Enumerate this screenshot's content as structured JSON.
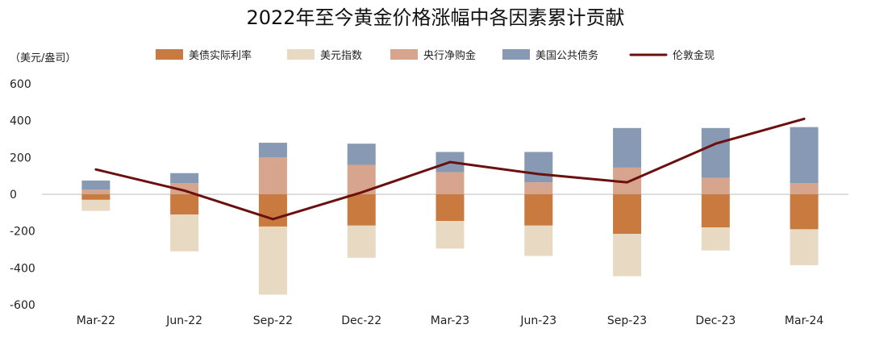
{
  "chart_data": {
    "type": "bar",
    "title": "2022年至今黄金价格涨幅中各因素累计贡献",
    "unit_label": "（美元/盎司）",
    "categories": [
      "Mar-22",
      "Jun-22",
      "Sep-22",
      "Dec-22",
      "Mar-23",
      "Jun-23",
      "Sep-23",
      "Dec-23",
      "Mar-24"
    ],
    "ylim": [
      -600,
      600
    ],
    "yticks": [
      -600,
      -400,
      -200,
      0,
      200,
      400,
      600
    ],
    "grid": false,
    "legend_position": "top",
    "bar_series": [
      {
        "name": "美债实际利率",
        "color": "#C97A3F",
        "values": [
          -30,
          -110,
          -175,
          -170,
          -145,
          -170,
          -215,
          -180,
          -190
        ]
      },
      {
        "name": "美元指数",
        "color": "#E8D9C3",
        "values": [
          -60,
          -200,
          -370,
          -175,
          -150,
          -165,
          -230,
          -125,
          -195
        ]
      },
      {
        "name": "央行净购金",
        "color": "#D7A58E",
        "values": [
          25,
          60,
          200,
          160,
          120,
          65,
          145,
          90,
          60
        ]
      },
      {
        "name": "美国公共债务",
        "color": "#8799B3",
        "values": [
          50,
          55,
          80,
          115,
          110,
          165,
          215,
          270,
          305
        ]
      }
    ],
    "line_series": {
      "name": "伦敦金现",
      "color": "#6B0F0F",
      "values": [
        135,
        20,
        -135,
        10,
        175,
        110,
        65,
        275,
        410
      ]
    }
  }
}
